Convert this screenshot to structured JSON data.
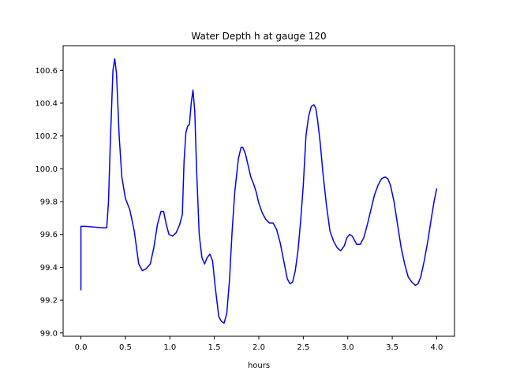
{
  "chart_data": {
    "type": "line",
    "title": "Water Depth h at gauge 120",
    "xlabel": "hours",
    "ylabel": "",
    "xlim": [
      -0.2,
      4.2
    ],
    "ylim": [
      98.98,
      100.75
    ],
    "xticks": [
      0.0,
      0.5,
      1.0,
      1.5,
      2.0,
      2.5,
      3.0,
      3.5,
      4.0
    ],
    "xtick_labels": [
      "0.0",
      "0.5",
      "1.0",
      "1.5",
      "2.0",
      "2.5",
      "3.0",
      "3.5",
      "4.0"
    ],
    "yticks": [
      99.0,
      99.2,
      99.4,
      99.6,
      99.8,
      100.0,
      100.2,
      100.4,
      100.6
    ],
    "ytick_labels": [
      "99.0",
      "99.2",
      "99.4",
      "99.6",
      "99.8",
      "100.0",
      "100.2",
      "100.4",
      "100.6"
    ],
    "grid": false,
    "color": "#0000ff",
    "series": [
      {
        "name": "",
        "x": [
          0.0,
          0.0,
          0.05,
          0.15,
          0.25,
          0.29,
          0.31,
          0.33,
          0.36,
          0.38,
          0.4,
          0.43,
          0.46,
          0.5,
          0.55,
          0.6,
          0.65,
          0.69,
          0.73,
          0.78,
          0.82,
          0.86,
          0.9,
          0.93,
          0.96,
          0.99,
          1.03,
          1.07,
          1.11,
          1.14,
          1.16,
          1.18,
          1.2,
          1.22,
          1.24,
          1.26,
          1.28,
          1.3,
          1.33,
          1.36,
          1.39,
          1.42,
          1.45,
          1.48,
          1.51,
          1.55,
          1.58,
          1.61,
          1.64,
          1.67,
          1.7,
          1.73,
          1.77,
          1.8,
          1.82,
          1.85,
          1.88,
          1.91,
          1.94,
          1.97,
          2.0,
          2.04,
          2.08,
          2.12,
          2.16,
          2.2,
          2.24,
          2.28,
          2.32,
          2.35,
          2.38,
          2.41,
          2.44,
          2.47,
          2.5,
          2.53,
          2.56,
          2.59,
          2.62,
          2.64,
          2.66,
          2.69,
          2.72,
          2.76,
          2.8,
          2.84,
          2.88,
          2.92,
          2.96,
          2.99,
          3.02,
          3.05,
          3.07,
          3.1,
          3.14,
          3.18,
          3.22,
          3.26,
          3.3,
          3.34,
          3.38,
          3.42,
          3.45,
          3.48,
          3.52,
          3.56,
          3.6,
          3.64,
          3.68,
          3.72,
          3.76,
          3.79,
          3.82,
          3.86,
          3.9,
          3.94,
          3.97,
          4.0
        ],
        "y": [
          99.26,
          99.65,
          99.65,
          99.645,
          99.64,
          99.64,
          99.8,
          100.15,
          100.6,
          100.67,
          100.58,
          100.2,
          99.95,
          99.82,
          99.75,
          99.62,
          99.42,
          99.38,
          99.39,
          99.42,
          99.52,
          99.66,
          99.74,
          99.74,
          99.66,
          99.6,
          99.59,
          99.61,
          99.66,
          99.72,
          100.05,
          100.22,
          100.26,
          100.27,
          100.4,
          100.48,
          100.35,
          100.0,
          99.6,
          99.46,
          99.42,
          99.46,
          99.48,
          99.44,
          99.28,
          99.1,
          99.07,
          99.06,
          99.12,
          99.32,
          99.62,
          99.86,
          100.06,
          100.13,
          100.13,
          100.09,
          100.02,
          99.95,
          99.91,
          99.86,
          99.79,
          99.73,
          99.69,
          99.67,
          99.67,
          99.63,
          99.55,
          99.44,
          99.33,
          99.3,
          99.31,
          99.38,
          99.5,
          99.68,
          99.9,
          100.2,
          100.32,
          100.38,
          100.39,
          100.37,
          100.3,
          100.16,
          99.98,
          99.78,
          99.62,
          99.56,
          99.52,
          99.5,
          99.53,
          99.58,
          99.6,
          99.59,
          99.57,
          99.54,
          99.54,
          99.58,
          99.66,
          99.75,
          99.84,
          99.9,
          99.94,
          99.95,
          99.94,
          99.9,
          99.8,
          99.66,
          99.52,
          99.42,
          99.34,
          99.31,
          99.29,
          99.3,
          99.34,
          99.44,
          99.56,
          99.7,
          99.8,
          99.88
        ]
      }
    ]
  }
}
